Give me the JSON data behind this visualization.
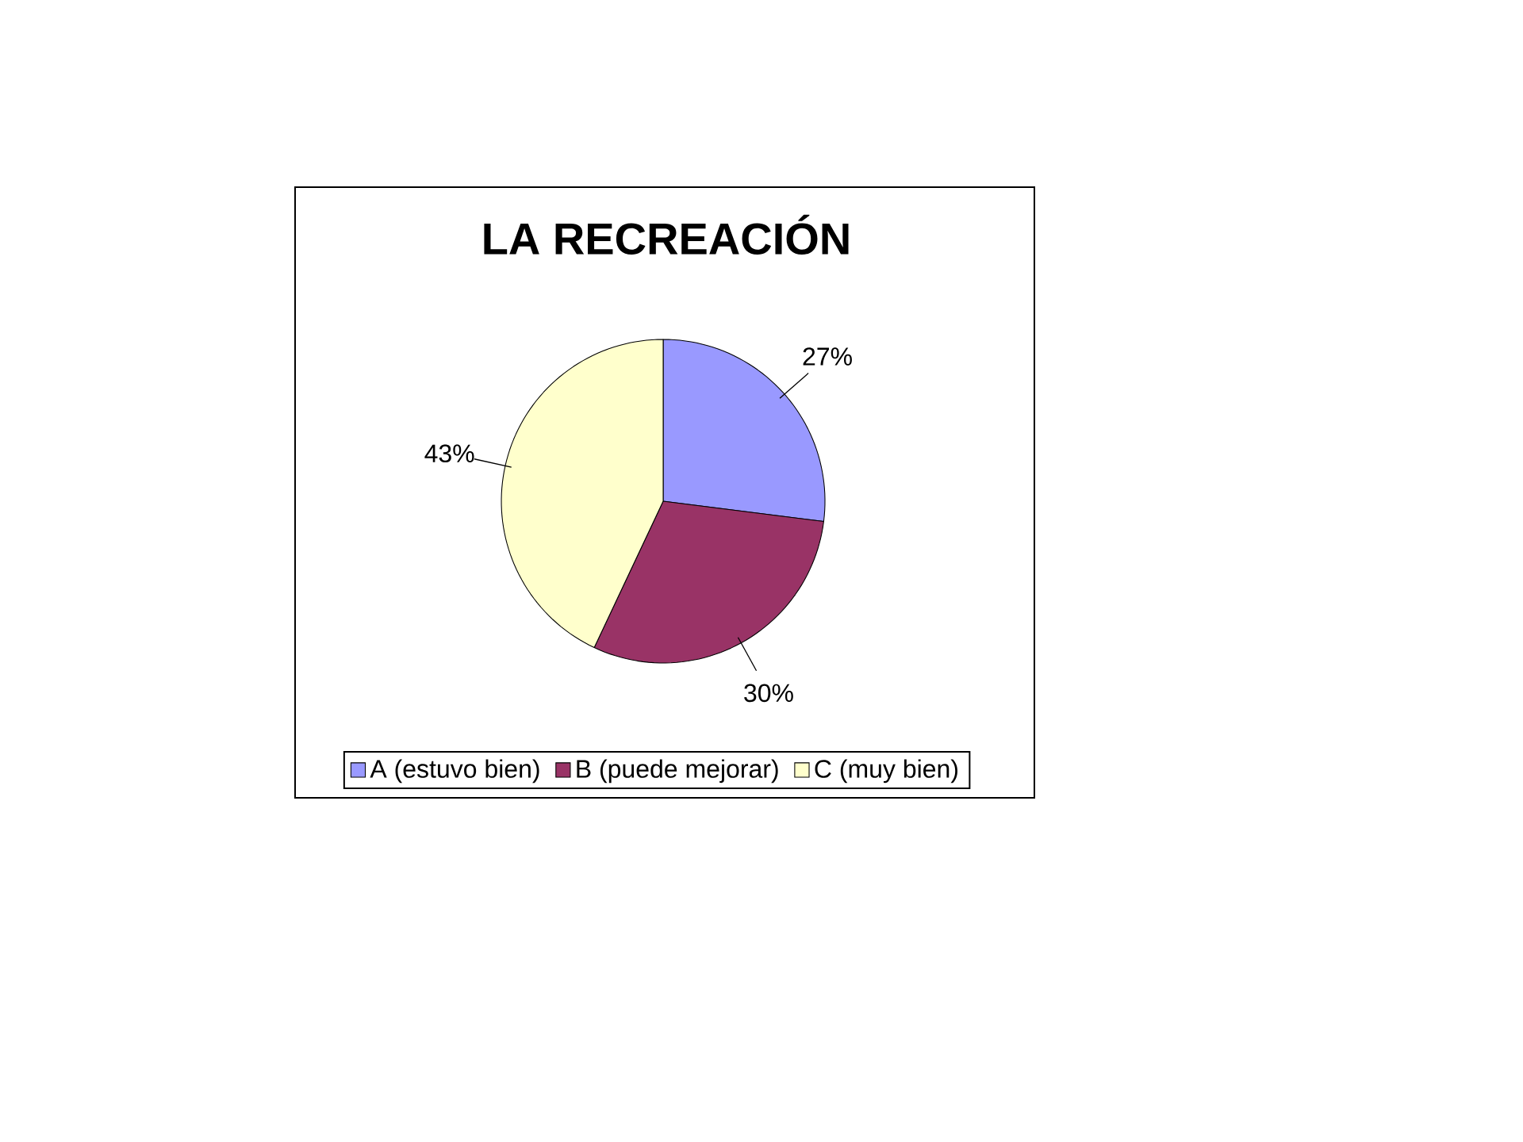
{
  "chart_data": {
    "type": "pie",
    "title": "LA RECREACIÓN",
    "categories": [
      "A (estuvo bien)",
      "B (puede mejorar)",
      "C (muy bien)"
    ],
    "values": [
      27,
      30,
      43
    ],
    "colors": [
      "#9999ff",
      "#993366",
      "#ffffcc"
    ],
    "value_labels": [
      "27%",
      "30%",
      "43%"
    ],
    "legend": "bottom"
  }
}
